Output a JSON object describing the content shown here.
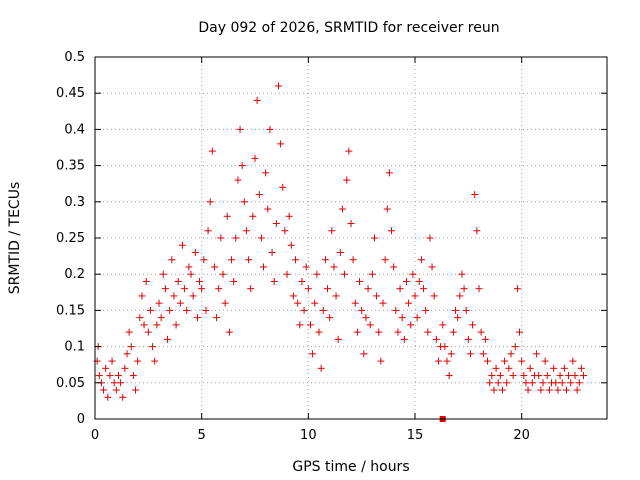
{
  "chart_data": {
    "type": "scatter",
    "title": "Day 092 of 2026, SRMTID for receiver reun",
    "xlabel": "GPS time / hours",
    "ylabel": "SRMTID / TECUs",
    "xlim": [
      0,
      24
    ],
    "ylim": [
      0,
      0.5
    ],
    "x_ticks": [
      0,
      5,
      10,
      15,
      20
    ],
    "x_tick_labels": [
      "0",
      "5",
      "10",
      "15",
      "20"
    ],
    "y_ticks": [
      0,
      0.05,
      0.1,
      0.15,
      0.2,
      0.25,
      0.3,
      0.35,
      0.4,
      0.45,
      0.5
    ],
    "y_tick_labels": [
      "0",
      "0.05",
      "0.1",
      "0.15",
      "0.2",
      "0.25",
      "0.3",
      "0.35",
      "0.4",
      "0.45",
      "0.5"
    ],
    "grid": true,
    "marker": "plus",
    "color": "#e00000",
    "series": [
      {
        "name": "SRMTID",
        "points": [
          [
            0.1,
            0.08
          ],
          [
            0.15,
            0.1
          ],
          [
            0.2,
            0.06
          ],
          [
            0.3,
            0.05
          ],
          [
            0.4,
            0.04
          ],
          [
            0.5,
            0.07
          ],
          [
            0.6,
            0.03
          ],
          [
            0.7,
            0.06
          ],
          [
            0.8,
            0.08
          ],
          [
            0.9,
            0.05
          ],
          [
            1.0,
            0.04
          ],
          [
            1.1,
            0.06
          ],
          [
            1.2,
            0.05
          ],
          [
            1.3,
            0.03
          ],
          [
            1.4,
            0.07
          ],
          [
            1.5,
            0.09
          ],
          [
            1.6,
            0.12
          ],
          [
            1.7,
            0.1
          ],
          [
            1.8,
            0.06
          ],
          [
            1.9,
            0.04
          ],
          [
            2.0,
            0.08
          ],
          [
            2.1,
            0.14
          ],
          [
            2.2,
            0.17
          ],
          [
            2.3,
            0.13
          ],
          [
            2.4,
            0.19
          ],
          [
            2.5,
            0.12
          ],
          [
            2.6,
            0.15
          ],
          [
            2.7,
            0.1
          ],
          [
            2.8,
            0.08
          ],
          [
            2.9,
            0.13
          ],
          [
            3.0,
            0.16
          ],
          [
            3.1,
            0.14
          ],
          [
            3.2,
            0.2
          ],
          [
            3.3,
            0.18
          ],
          [
            3.4,
            0.11
          ],
          [
            3.5,
            0.15
          ],
          [
            3.6,
            0.22
          ],
          [
            3.7,
            0.17
          ],
          [
            3.8,
            0.13
          ],
          [
            3.9,
            0.19
          ],
          [
            4.0,
            0.16
          ],
          [
            4.1,
            0.24
          ],
          [
            4.2,
            0.18
          ],
          [
            4.3,
            0.15
          ],
          [
            4.4,
            0.21
          ],
          [
            4.5,
            0.2
          ],
          [
            4.6,
            0.17
          ],
          [
            4.7,
            0.23
          ],
          [
            4.8,
            0.14
          ],
          [
            4.9,
            0.19
          ],
          [
            5.0,
            0.18
          ],
          [
            5.1,
            0.22
          ],
          [
            5.2,
            0.15
          ],
          [
            5.3,
            0.26
          ],
          [
            5.4,
            0.3
          ],
          [
            5.5,
            0.37
          ],
          [
            5.6,
            0.21
          ],
          [
            5.7,
            0.14
          ],
          [
            5.8,
            0.18
          ],
          [
            5.9,
            0.25
          ],
          [
            6.0,
            0.2
          ],
          [
            6.1,
            0.16
          ],
          [
            6.2,
            0.28
          ],
          [
            6.3,
            0.12
          ],
          [
            6.4,
            0.22
          ],
          [
            6.5,
            0.19
          ],
          [
            6.6,
            0.25
          ],
          [
            6.7,
            0.33
          ],
          [
            6.8,
            0.4
          ],
          [
            6.9,
            0.35
          ],
          [
            7.0,
            0.3
          ],
          [
            7.1,
            0.26
          ],
          [
            7.2,
            0.22
          ],
          [
            7.3,
            0.18
          ],
          [
            7.4,
            0.28
          ],
          [
            7.5,
            0.36
          ],
          [
            7.6,
            0.44
          ],
          [
            7.7,
            0.31
          ],
          [
            7.8,
            0.25
          ],
          [
            7.9,
            0.21
          ],
          [
            8.0,
            0.34
          ],
          [
            8.1,
            0.29
          ],
          [
            8.2,
            0.4
          ],
          [
            8.3,
            0.23
          ],
          [
            8.4,
            0.19
          ],
          [
            8.5,
            0.27
          ],
          [
            8.6,
            0.46
          ],
          [
            8.7,
            0.38
          ],
          [
            8.8,
            0.32
          ],
          [
            8.9,
            0.26
          ],
          [
            9.0,
            0.2
          ],
          [
            9.1,
            0.28
          ],
          [
            9.2,
            0.24
          ],
          [
            9.3,
            0.17
          ],
          [
            9.4,
            0.22
          ],
          [
            9.5,
            0.16
          ],
          [
            9.6,
            0.13
          ],
          [
            9.7,
            0.19
          ],
          [
            9.8,
            0.15
          ],
          [
            9.9,
            0.21
          ],
          [
            10.0,
            0.18
          ],
          [
            10.1,
            0.13
          ],
          [
            10.2,
            0.09
          ],
          [
            10.3,
            0.16
          ],
          [
            10.4,
            0.2
          ],
          [
            10.5,
            0.12
          ],
          [
            10.6,
            0.07
          ],
          [
            10.7,
            0.15
          ],
          [
            10.8,
            0.22
          ],
          [
            10.9,
            0.18
          ],
          [
            11.0,
            0.14
          ],
          [
            11.1,
            0.26
          ],
          [
            11.2,
            0.21
          ],
          [
            11.3,
            0.17
          ],
          [
            11.4,
            0.11
          ],
          [
            11.5,
            0.23
          ],
          [
            11.6,
            0.29
          ],
          [
            11.7,
            0.2
          ],
          [
            11.8,
            0.33
          ],
          [
            11.9,
            0.37
          ],
          [
            12.0,
            0.27
          ],
          [
            12.1,
            0.22
          ],
          [
            12.2,
            0.16
          ],
          [
            12.3,
            0.12
          ],
          [
            12.4,
            0.19
          ],
          [
            12.5,
            0.15
          ],
          [
            12.6,
            0.09
          ],
          [
            12.7,
            0.14
          ],
          [
            12.8,
            0.18
          ],
          [
            12.9,
            0.13
          ],
          [
            13.0,
            0.2
          ],
          [
            13.1,
            0.25
          ],
          [
            13.2,
            0.17
          ],
          [
            13.3,
            0.12
          ],
          [
            13.4,
            0.08
          ],
          [
            13.5,
            0.16
          ],
          [
            13.6,
            0.22
          ],
          [
            13.7,
            0.29
          ],
          [
            13.8,
            0.34
          ],
          [
            13.9,
            0.26
          ],
          [
            14.0,
            0.21
          ],
          [
            14.1,
            0.15
          ],
          [
            14.2,
            0.12
          ],
          [
            14.3,
            0.18
          ],
          [
            14.4,
            0.14
          ],
          [
            14.5,
            0.11
          ],
          [
            14.6,
            0.19
          ],
          [
            14.7,
            0.16
          ],
          [
            14.8,
            0.13
          ],
          [
            14.9,
            0.2
          ],
          [
            15.0,
            0.17
          ],
          [
            15.1,
            0.14
          ],
          [
            15.2,
            0.19
          ],
          [
            15.3,
            0.22
          ],
          [
            15.4,
            0.18
          ],
          [
            15.5,
            0.15
          ],
          [
            15.6,
            0.12
          ],
          [
            15.7,
            0.25
          ],
          [
            15.8,
            0.21
          ],
          [
            15.9,
            0.17
          ],
          [
            16.0,
            0.11
          ],
          [
            16.1,
            0.08
          ],
          [
            16.2,
            0.1
          ],
          [
            16.3,
            0.13
          ],
          [
            16.4,
            0.1
          ],
          [
            16.5,
            0.08
          ],
          [
            16.6,
            0.06
          ],
          [
            16.7,
            0.09
          ],
          [
            16.8,
            0.12
          ],
          [
            16.9,
            0.15
          ],
          [
            17.0,
            0.14
          ],
          [
            17.1,
            0.17
          ],
          [
            17.2,
            0.2
          ],
          [
            17.3,
            0.18
          ],
          [
            17.4,
            0.15
          ],
          [
            17.5,
            0.11
          ],
          [
            17.6,
            0.09
          ],
          [
            17.7,
            0.13
          ],
          [
            17.8,
            0.31
          ],
          [
            17.9,
            0.26
          ],
          [
            18.0,
            0.18
          ],
          [
            18.1,
            0.12
          ],
          [
            18.2,
            0.09
          ],
          [
            18.3,
            0.11
          ],
          [
            18.4,
            0.08
          ],
          [
            18.5,
            0.05
          ],
          [
            18.6,
            0.06
          ],
          [
            18.7,
            0.04
          ],
          [
            18.8,
            0.07
          ],
          [
            18.9,
            0.05
          ],
          [
            19.0,
            0.06
          ],
          [
            19.1,
            0.04
          ],
          [
            19.2,
            0.08
          ],
          [
            19.3,
            0.05
          ],
          [
            19.4,
            0.07
          ],
          [
            19.5,
            0.09
          ],
          [
            19.6,
            0.06
          ],
          [
            19.7,
            0.1
          ],
          [
            19.8,
            0.18
          ],
          [
            19.9,
            0.12
          ],
          [
            20.0,
            0.08
          ],
          [
            20.1,
            0.06
          ],
          [
            20.2,
            0.05
          ],
          [
            20.3,
            0.04
          ],
          [
            20.4,
            0.07
          ],
          [
            20.5,
            0.05
          ],
          [
            20.6,
            0.06
          ],
          [
            20.7,
            0.09
          ],
          [
            20.8,
            0.06
          ],
          [
            20.9,
            0.04
          ],
          [
            21.0,
            0.05
          ],
          [
            21.1,
            0.08
          ],
          [
            21.2,
            0.06
          ],
          [
            21.3,
            0.04
          ],
          [
            21.4,
            0.05
          ],
          [
            21.5,
            0.07
          ],
          [
            21.6,
            0.05
          ],
          [
            21.7,
            0.04
          ],
          [
            21.8,
            0.06
          ],
          [
            21.9,
            0.05
          ],
          [
            22.0,
            0.07
          ],
          [
            22.1,
            0.04
          ],
          [
            22.2,
            0.06
          ],
          [
            22.3,
            0.05
          ],
          [
            22.4,
            0.08
          ],
          [
            22.5,
            0.06
          ],
          [
            22.6,
            0.04
          ],
          [
            22.7,
            0.05
          ],
          [
            22.8,
            0.07
          ],
          [
            22.9,
            0.06
          ]
        ]
      }
    ],
    "special_marker": {
      "x": 16.3,
      "y": 0.0,
      "shape": "square"
    }
  }
}
